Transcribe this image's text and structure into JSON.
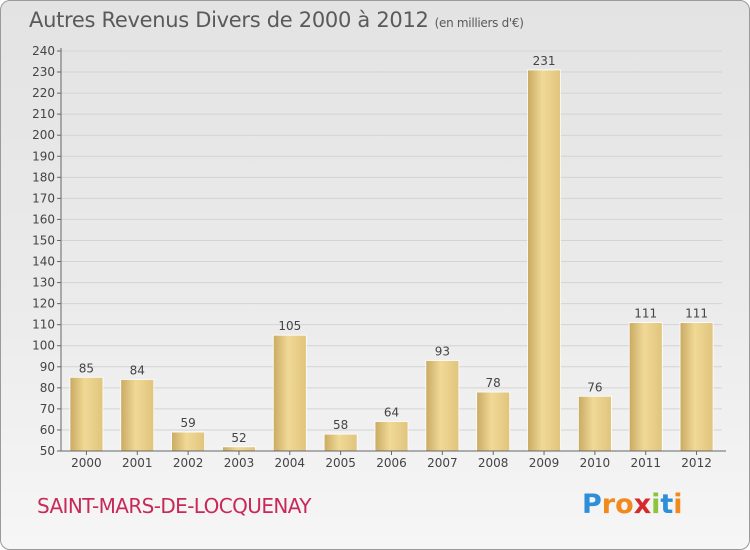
{
  "title": "Autres Revenus Divers de 2000 à 2012",
  "unit": "(en milliers d'€)",
  "place": "SAINT-MARS-DE-LOCQUENAY",
  "logo": {
    "letters": [
      "P",
      "r",
      "o",
      "x",
      "i",
      "t",
      "i"
    ],
    "colors": [
      "#2e8fd8",
      "#f08a1c",
      "#f08a1c",
      "#d62a2a",
      "#8cc43c",
      "#2e8fd8",
      "#f08a1c"
    ]
  },
  "colors": {
    "bar": "#e2c67e",
    "grid": "#d4d4d4",
    "axis": "#666666",
    "text": "#444444"
  },
  "chart_data": {
    "type": "bar",
    "categories": [
      "2000",
      "2001",
      "2002",
      "2003",
      "2004",
      "2005",
      "2006",
      "2007",
      "2008",
      "2009",
      "2010",
      "2011",
      "2012"
    ],
    "values": [
      85,
      84,
      59,
      52,
      105,
      58,
      64,
      93,
      78,
      231,
      76,
      111,
      111
    ],
    "ylim": [
      50,
      240
    ],
    "yticks": [
      50,
      60,
      70,
      80,
      90,
      100,
      110,
      120,
      130,
      140,
      150,
      160,
      170,
      180,
      190,
      200,
      210,
      220,
      230,
      240
    ],
    "grid": true,
    "xlabel": "",
    "ylabel": ""
  }
}
